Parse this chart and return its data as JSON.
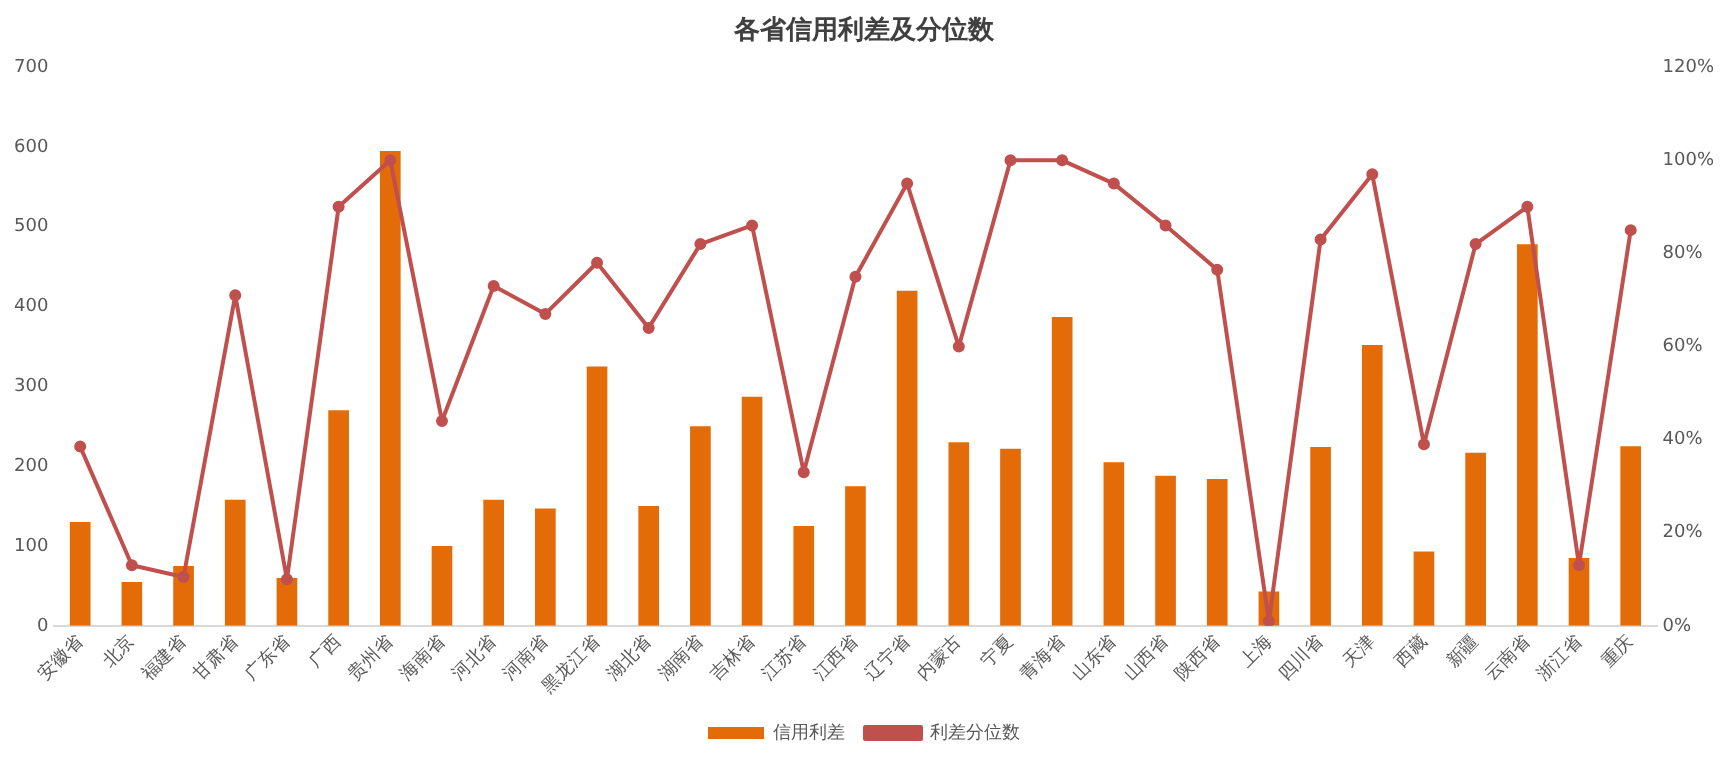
{
  "chart_data": {
    "type": "bar",
    "title": "各省信用利差及分位数",
    "categories": [
      "安徽省",
      "北京",
      "福建省",
      "甘肃省",
      "广东省",
      "广西",
      "贵州省",
      "海南省",
      "河北省",
      "河南省",
      "黑龙江省",
      "湖北省",
      "湖南省",
      "吉林省",
      "江苏省",
      "江西省",
      "辽宁省",
      "内蒙古",
      "宁夏",
      "青海省",
      "山东省",
      "山西省",
      "陕西省",
      "上海",
      "四川省",
      "天津",
      "西藏",
      "新疆",
      "云南省",
      "浙江省",
      "重庆"
    ],
    "series": [
      {
        "name": "信用利差",
        "color": "#e36c09",
        "values": [
          130,
          55,
          75,
          158,
          60,
          270,
          595,
          100,
          158,
          147,
          325,
          150,
          250,
          287,
          125,
          175,
          420,
          230,
          222,
          387,
          205,
          188,
          184,
          43,
          224,
          352,
          93,
          217,
          478,
          85,
          225
        ]
      },
      {
        "name": "利差分位数",
        "type": "line",
        "axis": "y2",
        "color": "#c0504d",
        "marker": "circle",
        "values": [
          38.5,
          13,
          10.5,
          71,
          10,
          90,
          100,
          44,
          73,
          67,
          78,
          64,
          82,
          86,
          33,
          75,
          95,
          60,
          100,
          100,
          95,
          86,
          76.5,
          1,
          83,
          97,
          39,
          82,
          90,
          13,
          85
        ]
      }
    ],
    "ylim": [
      0,
      700
    ],
    "yticks": [
      0,
      100,
      200,
      300,
      400,
      500,
      600,
      700
    ],
    "y2lim": [
      0,
      120
    ],
    "y2ticks": [
      {
        "value": 0,
        "label": "0%"
      },
      {
        "value": 20,
        "label": "20%"
      },
      {
        "value": 40,
        "label": "40%"
      },
      {
        "value": 60,
        "label": "60%"
      },
      {
        "value": 80,
        "label": "80%"
      },
      {
        "value": 100,
        "label": "100%"
      },
      {
        "value": 120,
        "label": "120%"
      }
    ],
    "grid": false,
    "legend": "bottom"
  }
}
